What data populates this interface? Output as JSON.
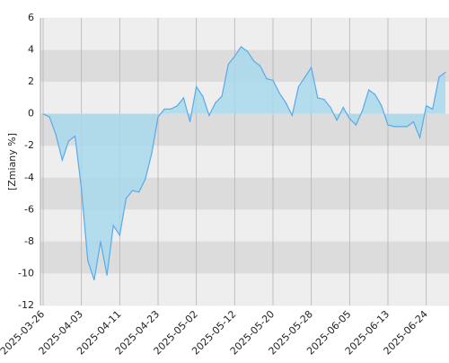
{
  "chart_data": {
    "type": "area",
    "y_label": "[Zmiany %]",
    "categories": [
      "2025-03-26",
      null,
      null,
      null,
      null,
      null,
      "2025-04-03",
      null,
      null,
      null,
      null,
      null,
      "2025-04-11",
      null,
      null,
      null,
      null,
      null,
      "2025-04-23",
      null,
      null,
      null,
      null,
      null,
      "2025-05-02",
      null,
      null,
      null,
      null,
      null,
      "2025-05-12",
      null,
      null,
      null,
      null,
      null,
      "2025-05-20",
      null,
      null,
      null,
      null,
      null,
      "2025-05-28",
      null,
      null,
      null,
      null,
      null,
      "2025-06-05",
      null,
      null,
      null,
      null,
      null,
      "2025-06-13",
      null,
      null,
      null,
      null,
      null,
      "2025-06-24",
      null,
      null,
      null
    ],
    "values": [
      0,
      -0.2,
      -1.3,
      -2.9,
      -1.7,
      -1.4,
      -4.7,
      -9.2,
      -10.4,
      -8.0,
      -10.1,
      -7.0,
      -7.6,
      -5.3,
      -4.8,
      -4.9,
      -4.1,
      -2.5,
      -0.2,
      0.3,
      0.3,
      0.5,
      1.0,
      -0.5,
      1.7,
      1.1,
      -0.1,
      0.7,
      1.1,
      3.1,
      3.6,
      4.2,
      3.9,
      3.3,
      3.0,
      2.2,
      2.1,
      1.3,
      0.7,
      -0.1,
      1.7,
      2.3,
      2.9,
      1.0,
      0.9,
      0.4,
      -0.4,
      0.4,
      -0.3,
      -0.7,
      0.2,
      1.5,
      1.2,
      0.5,
      -0.7,
      -0.8,
      -0.8,
      -0.8,
      -0.5,
      -1.5,
      0.5,
      0.3,
      2.3,
      2.6
    ],
    "color": "#5aaae8",
    "fill": "#a8d8ec",
    "ylim": [
      -12,
      6
    ],
    "yticks": [
      6,
      4,
      2,
      0,
      -2,
      -4,
      -6,
      -8,
      -10,
      -12
    ],
    "band_colors": [
      "#eeeeee",
      "#dcdcdc"
    ],
    "grid": true
  }
}
